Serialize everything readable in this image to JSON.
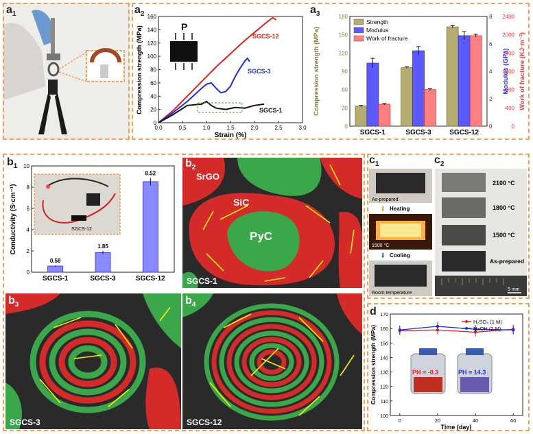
{
  "panels": {
    "a1": {
      "label": "a",
      "sub": "1"
    },
    "a2": {
      "label": "a",
      "sub": "2"
    },
    "a3": {
      "label": "a",
      "sub": "3"
    },
    "b1": {
      "label": "b",
      "sub": "1"
    },
    "b2": {
      "label": "b",
      "sub": "2"
    },
    "b3": {
      "label": "b",
      "sub": "3"
    },
    "b4": {
      "label": "b",
      "sub": "4"
    },
    "c1": {
      "label": "c",
      "sub": "1"
    },
    "c2": {
      "label": "c",
      "sub": "2"
    },
    "d": {
      "label": "d",
      "sub": ""
    }
  },
  "micrographs": {
    "b2": {
      "tag": "SGCS-1",
      "labels": [
        "SrGO",
        "SiC",
        "PyC"
      ]
    },
    "b3": {
      "tag": "SGCS-3"
    },
    "b4": {
      "tag": "SGCS-12"
    }
  },
  "c1": {
    "captions": [
      "As-prepared",
      "Heating",
      "1500 °C",
      "Cooling",
      "Room temperature"
    ]
  },
  "c2": {
    "captions": [
      "2100 °C",
      "1800 °C",
      "1500 °C",
      "As-prepared",
      "5 mm"
    ]
  },
  "inset_a2": {
    "letter": "P"
  },
  "inset_b1": {
    "caption": "SGCS-12"
  },
  "inset_d": {
    "ph1": "PH = -0.3",
    "ph2": "PH = 14.3"
  },
  "colors": {
    "sgcs1": "#111111",
    "sgcs3": "#1f2fe0",
    "sgcs12": "#e8201c",
    "strength": "#a8a060",
    "modulus": "#3a3aff",
    "work": "#ff6060",
    "orange": "#f0a050"
  },
  "chart_data": [
    {
      "id": "a2",
      "type": "line",
      "xlabel": "Strain (%)",
      "ylabel": "Compression strength (MPa)",
      "xlim": [
        0,
        3.0
      ],
      "ylim": [
        0,
        160
      ],
      "xticks": [
        "0.0",
        "0.5",
        "1.0",
        "1.5",
        "2.0",
        "2.5",
        "3.0"
      ],
      "yticks": [
        "0",
        "20",
        "40",
        "60",
        "80",
        "100",
        "120",
        "140",
        "160"
      ],
      "series": [
        {
          "name": "SGCS-12",
          "x": [
            0,
            0.3,
            0.6,
            0.9,
            1.2,
            1.5,
            1.8,
            2.1,
            2.3,
            2.38,
            2.45
          ],
          "y": [
            0,
            18,
            40,
            62,
            84,
            104,
            124,
            142,
            154,
            158,
            155
          ]
        },
        {
          "name": "SGCS-3",
          "x": [
            0,
            0.3,
            0.6,
            0.9,
            1.0,
            1.1,
            1.2,
            1.3,
            1.4,
            1.5,
            1.6,
            1.7,
            1.8,
            1.85,
            1.9
          ],
          "y": [
            0,
            15,
            32,
            52,
            58,
            60,
            52,
            45,
            47,
            55,
            70,
            82,
            93,
            97,
            92
          ]
        },
        {
          "name": "SGCS-1",
          "x": [
            0,
            0.3,
            0.6,
            0.9,
            1.0,
            1.1,
            1.2,
            1.4,
            1.6,
            1.8,
            2.0,
            2.2
          ],
          "y": [
            0,
            12,
            26,
            28,
            32,
            26,
            22,
            20,
            23,
            22,
            26,
            28
          ]
        }
      ]
    },
    {
      "id": "a3",
      "type": "bar",
      "categories": [
        "SGCS-1",
        "SGCS-3",
        "SGCS-12"
      ],
      "ylabel": "Compression strength (MPa)",
      "ylabel2": "Modulus (GPa)",
      "ylabel3": "Work of fracture (KJ·m⁻²)",
      "ylim": [
        0,
        180
      ],
      "ylim2": [
        0,
        8
      ],
      "ylim3": [
        0,
        2400
      ],
      "yticks": [
        "0",
        "30",
        "60",
        "90",
        "120",
        "150",
        "180"
      ],
      "yticks2": [
        "0",
        "2",
        "4",
        "6",
        "8"
      ],
      "yticks3": [
        "0",
        "400",
        "800",
        "1200",
        "1600",
        "2000",
        "2400"
      ],
      "series": [
        {
          "name": "Strength",
          "axis": 1,
          "values": [
            33,
            96,
            163
          ],
          "err": [
            1,
            1.5,
            2
          ]
        },
        {
          "name": "Modulus",
          "axis": 2,
          "values": [
            4.6,
            5.5,
            6.6
          ],
          "err": [
            0.35,
            0.3,
            0.3
          ]
        },
        {
          "name": "Work of fracture",
          "axis": 3,
          "values": [
            480,
            800,
            1980
          ],
          "err": [
            15,
            20,
            30
          ]
        }
      ]
    },
    {
      "id": "b1",
      "type": "bar",
      "categories": [
        "SGCS-1",
        "SGCS-3",
        "SGCS-12"
      ],
      "values": [
        0.58,
        1.85,
        8.52
      ],
      "err": [
        0.05,
        0.15,
        0.35
      ],
      "labels": [
        "0.58",
        "1.85",
        "8.52"
      ],
      "ylabel": "Conductivity (S·cm⁻¹)",
      "ylim": [
        0,
        10
      ],
      "yticks": [
        "0",
        "2",
        "4",
        "6",
        "8",
        "10"
      ]
    },
    {
      "id": "d",
      "type": "line",
      "xlabel": "Time (day)",
      "ylabel": "Compression strength (MPa)",
      "xlim": [
        -5,
        65
      ],
      "ylim": [
        100,
        170
      ],
      "xticks": [
        "0",
        "20",
        "40",
        "60"
      ],
      "yticks": [
        "100",
        "110",
        "120",
        "130",
        "140",
        "150",
        "160",
        "170"
      ],
      "series": [
        {
          "name": "H₂SO₄ (1 M)",
          "x": [
            0,
            20,
            40,
            60
          ],
          "y": [
            158.5,
            159,
            157.5,
            159.5
          ],
          "err": [
            3,
            3,
            3,
            3
          ]
        },
        {
          "name": "NaOH (2 M)",
          "x": [
            0,
            20,
            40,
            60
          ],
          "y": [
            159,
            161.5,
            159.5,
            159
          ],
          "err": [
            3,
            3,
            3,
            3
          ]
        }
      ]
    }
  ]
}
